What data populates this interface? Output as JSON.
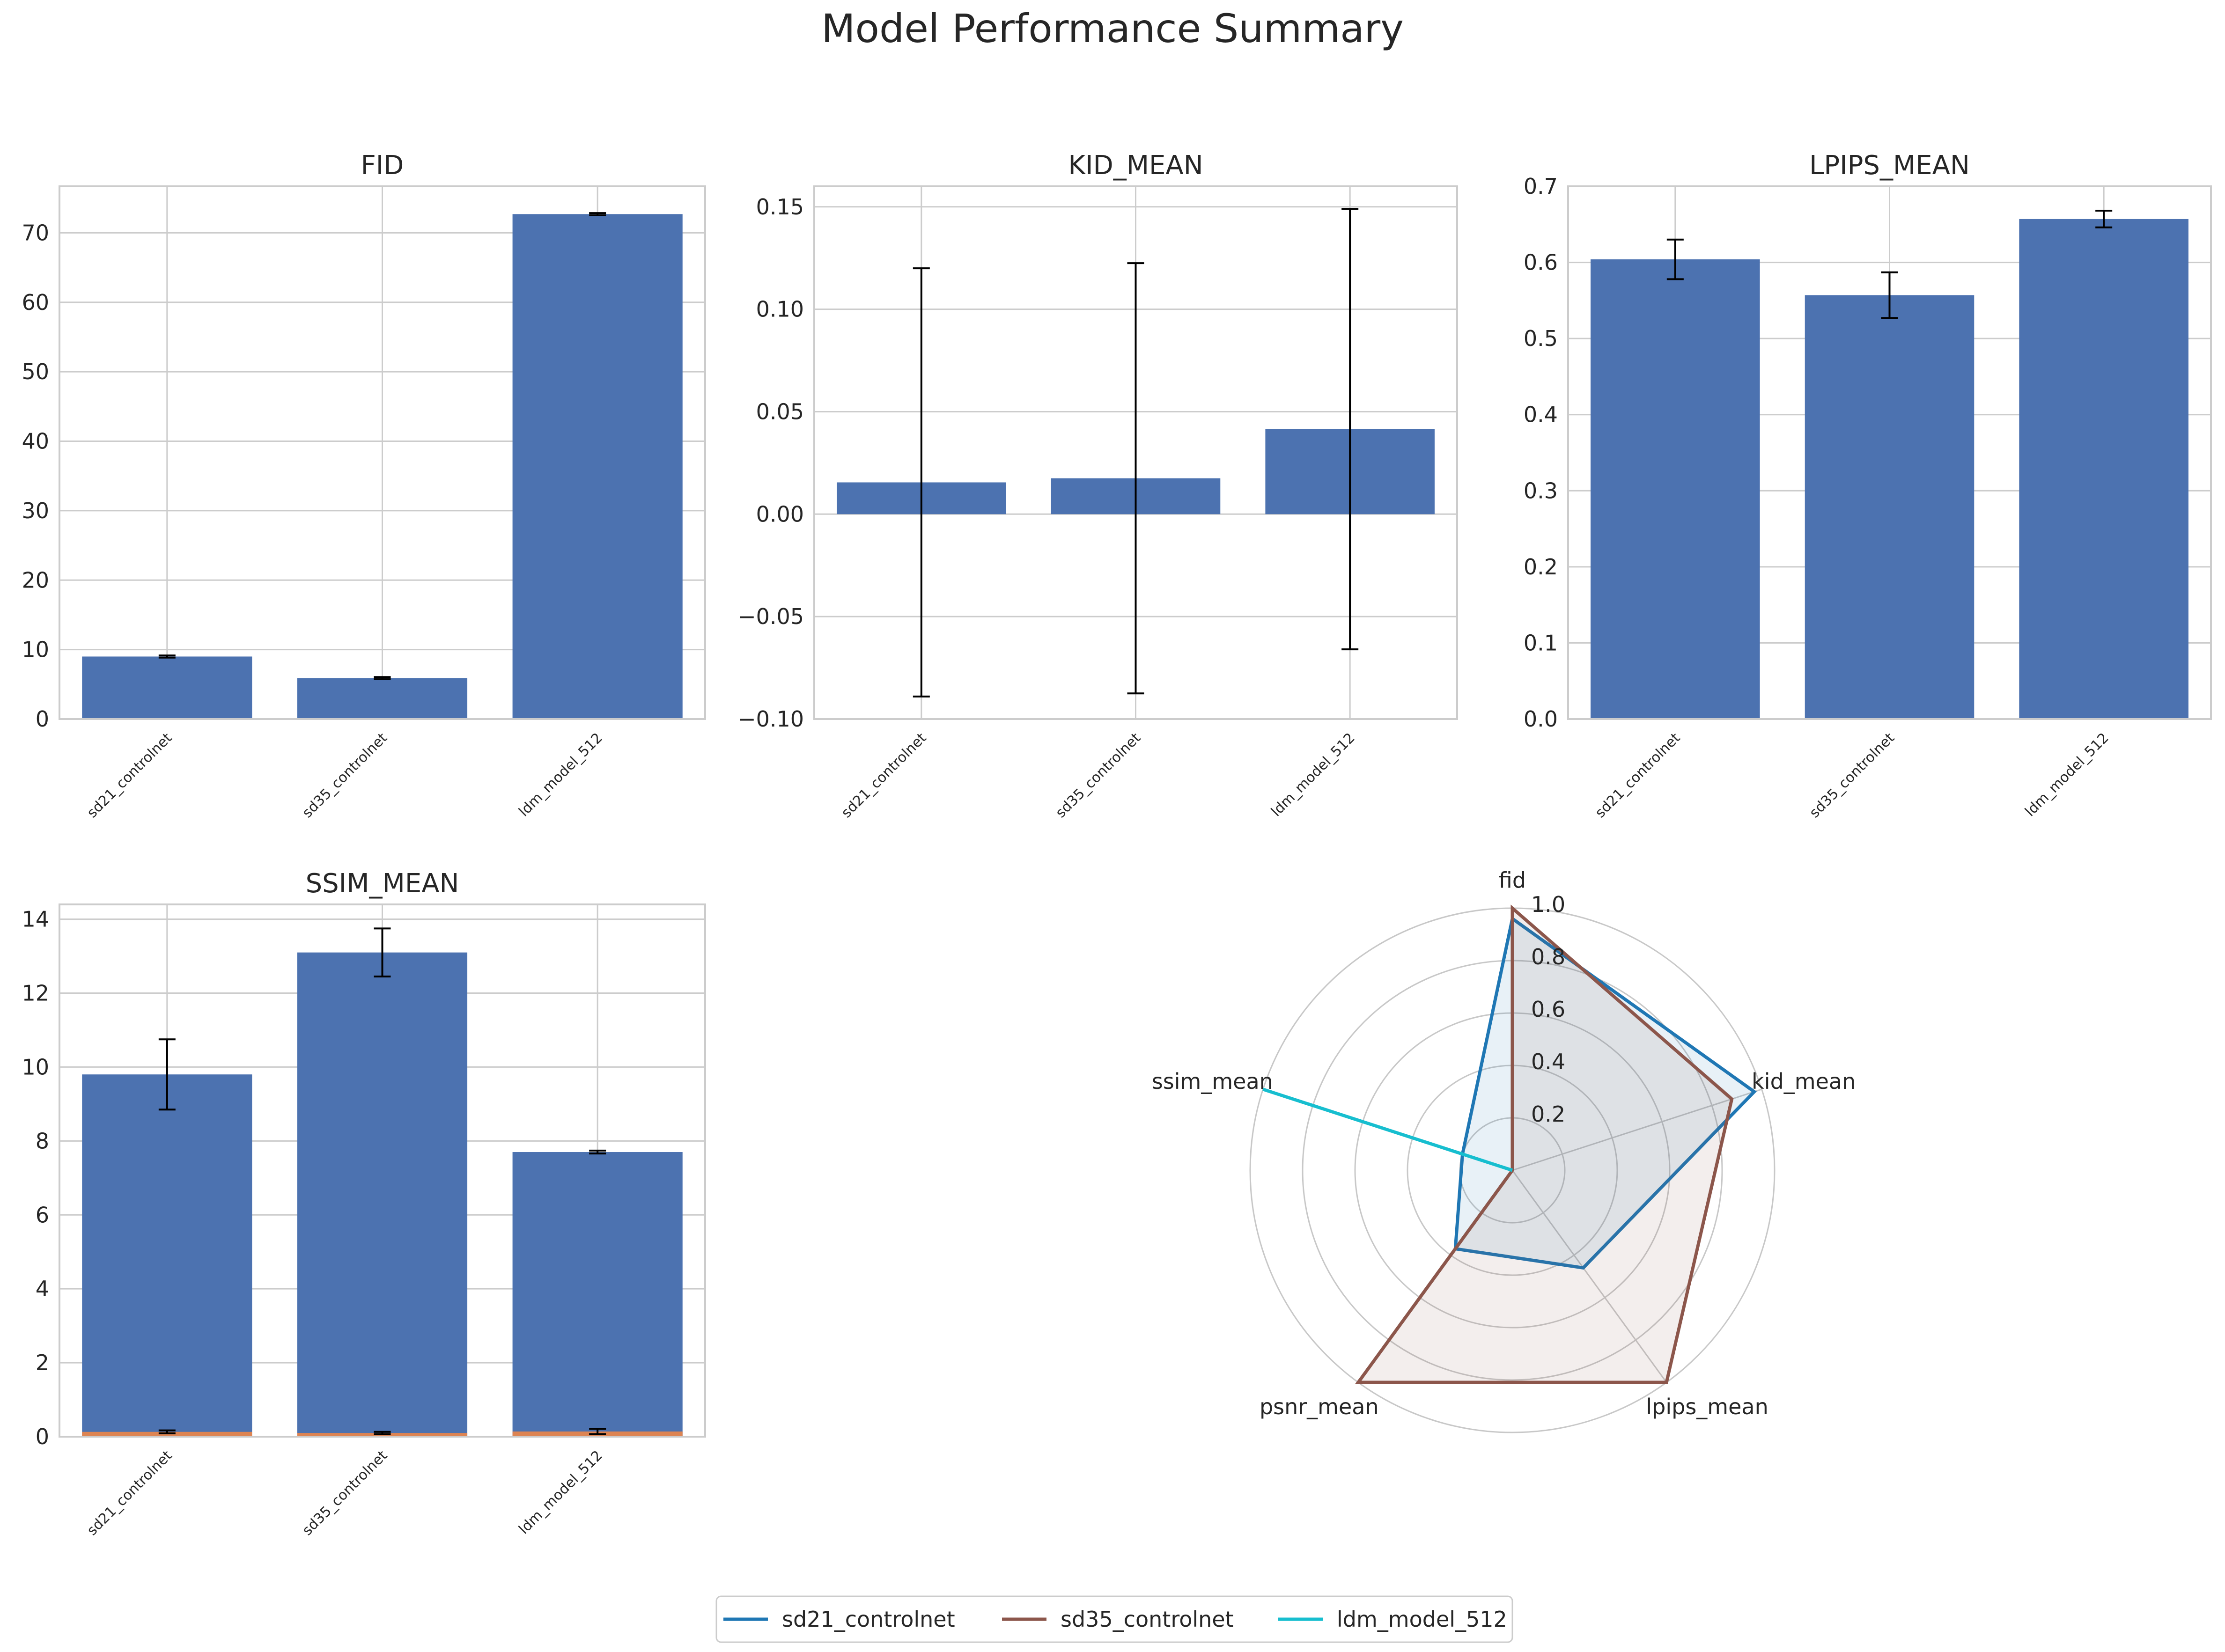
{
  "figure": {
    "title": "Model Performance Summary"
  },
  "chart_data": [
    {
      "type": "bar",
      "title": "FID",
      "categories": [
        "sd21_controlnet",
        "sd35_controlnet",
        "ldm_model_512"
      ],
      "values": [
        9.0,
        5.9,
        72.7
      ],
      "error": [
        0.15,
        0.15,
        0.15
      ],
      "ylim": [
        0,
        76.7
      ],
      "yticks": [
        0,
        10,
        20,
        30,
        40,
        50,
        60,
        70
      ],
      "ytick_labels": [
        "0",
        "10",
        "20",
        "30",
        "40",
        "50",
        "60",
        "70"
      ],
      "grid": true,
      "color": "#4c72b0"
    },
    {
      "type": "bar",
      "title": "KID_MEAN",
      "categories": [
        "sd21_controlnet",
        "sd35_controlnet",
        "ldm_model_512"
      ],
      "values": [
        0.0155,
        0.0175,
        0.0415
      ],
      "error": [
        0.1045,
        0.105,
        0.1075
      ],
      "ylim": [
        -0.1,
        0.16
      ],
      "yticks": [
        -0.1,
        -0.05,
        0,
        0.05,
        0.1,
        0.15
      ],
      "ytick_labels": [
        "−0.10",
        "−0.05",
        "0.00",
        "0.05",
        "0.10",
        "0.15"
      ],
      "grid": true,
      "color": "#4c72b0"
    },
    {
      "type": "bar",
      "title": "LPIPS_MEAN",
      "categories": [
        "sd21_controlnet",
        "sd35_controlnet",
        "ldm_model_512"
      ],
      "values": [
        0.604,
        0.557,
        0.657
      ],
      "error": [
        0.026,
        0.03,
        0.011
      ],
      "ylim": [
        0,
        0.7
      ],
      "yticks": [
        0,
        0.1,
        0.2,
        0.3,
        0.4,
        0.5,
        0.6,
        0.7
      ],
      "ytick_labels": [
        "0.0",
        "0.1",
        "0.2",
        "0.3",
        "0.4",
        "0.5",
        "0.6",
        "0.7"
      ],
      "grid": true,
      "color": "#4c72b0"
    },
    {
      "type": "bar",
      "title": "SSIM_MEAN",
      "categories": [
        "sd21_controlnet",
        "sd35_controlnet",
        "ldm_model_512"
      ],
      "values": [
        9.8,
        13.1,
        7.7
      ],
      "error": [
        0.95,
        0.65,
        0.04
      ],
      "secondary_values": [
        0.13,
        0.1,
        0.14
      ],
      "secondary_error": [
        0.04,
        0.03,
        0.07
      ],
      "secondary_color": "#dd8452",
      "ylim": [
        0,
        14.4
      ],
      "yticks": [
        0,
        2,
        4,
        6,
        8,
        10,
        12,
        14
      ],
      "ytick_labels": [
        "0",
        "2",
        "4",
        "6",
        "8",
        "10",
        "12",
        "14"
      ],
      "grid": true,
      "color": "#4c72b0"
    },
    {
      "type": "radar",
      "axes": [
        "fid",
        "kid_mean",
        "lpips_mean",
        "psnr_mean",
        "ssim_mean"
      ],
      "rlim": [
        0,
        1.0
      ],
      "rticks": [
        0.2,
        0.4,
        0.6,
        0.8,
        1.0
      ],
      "rtick_labels": [
        "0.2",
        "0.4",
        "0.6",
        "0.8",
        "1.0"
      ],
      "series": [
        {
          "name": "sd21_controlnet",
          "color": "#1f77b4",
          "values": [
            0.96,
            0.97,
            0.46,
            0.37,
            0.2
          ]
        },
        {
          "name": "sd35_controlnet",
          "color": "#8c564b",
          "values": [
            1.0,
            0.88,
            1.0,
            1.0,
            0.0
          ]
        },
        {
          "name": "ldm_model_512",
          "color": "#17becf",
          "values": [
            0.0,
            0.0,
            0.0,
            0.0,
            1.0
          ]
        }
      ],
      "legend_placement": "bottom-center"
    }
  ]
}
